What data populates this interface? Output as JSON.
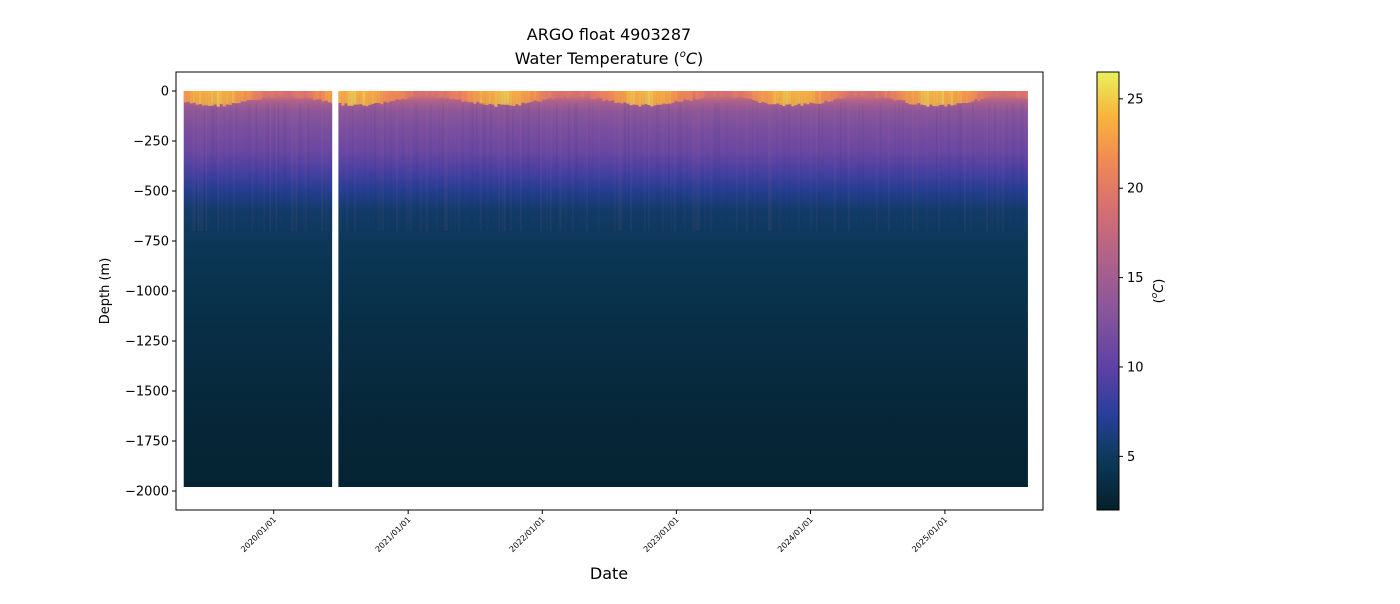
{
  "chart_data": {
    "type": "heatmap",
    "title": "ARGO float 4903287",
    "subtitle_text": "Water Temperature (",
    "subtitle_super": "o",
    "subtitle_unit": "C",
    "subtitle_close": ")",
    "xlabel": "Date",
    "ylabel": "Depth (m)",
    "colorbar_label_open": "(",
    "colorbar_label_super": "o",
    "colorbar_label_unit": "C",
    "colorbar_label_close": ")",
    "x_start": "2019/05/01",
    "x_end": "2025/08/15",
    "xlim": [
      "2019/04/10",
      "2025/09/25"
    ],
    "ylim": [
      -2095,
      95
    ],
    "x_ticks": [
      "2020/01/01",
      "2021/01/01",
      "2022/01/01",
      "2023/01/01",
      "2024/01/01",
      "2025/01/01"
    ],
    "y_ticks": [
      0,
      -250,
      -500,
      -750,
      -1000,
      -1250,
      -1500,
      -1750,
      -2000
    ],
    "y_tick_labels": [
      "0",
      "−250",
      "−500",
      "−750",
      "−1000",
      "−1250",
      "−1500",
      "−1750",
      "−2000"
    ],
    "data_gap": [
      "2020/06/08",
      "2020/06/25"
    ],
    "max_depth": -1980,
    "colorbar": {
      "colormap": "thermal",
      "range": [
        2,
        26.5
      ],
      "ticks": [
        5,
        10,
        15,
        20,
        25
      ],
      "tick_labels": [
        "5",
        "10",
        "15",
        "20",
        "25"
      ]
    },
    "temperature_profile": {
      "depth": [
        0,
        -50,
        -100,
        -200,
        -300,
        -400,
        -500,
        -600,
        -800,
        -1000,
        -1250,
        -1500,
        -1750,
        -2000
      ],
      "temperature": [
        21,
        16,
        13.5,
        12,
        11,
        9,
        7,
        5.5,
        4.5,
        4,
        3.5,
        3,
        2.6,
        2.4
      ]
    }
  }
}
